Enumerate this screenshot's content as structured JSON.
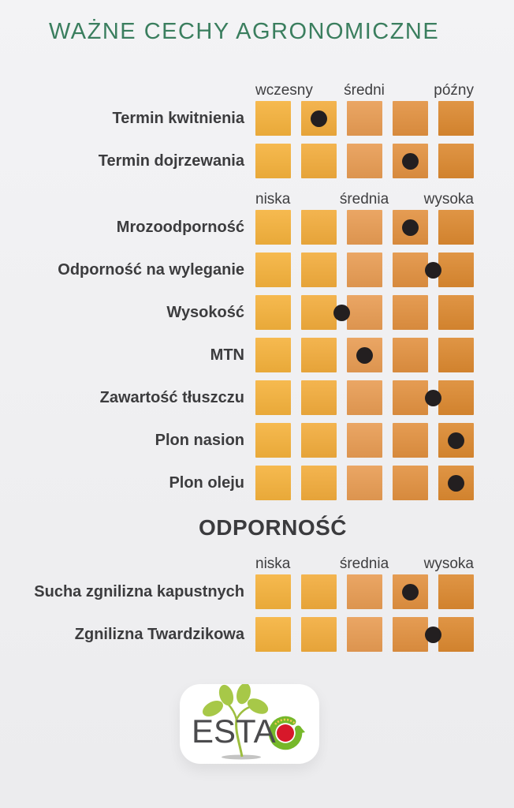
{
  "title": "WAŻNE CECHY AGRONOMICZNE",
  "chart_data": {
    "type": "table",
    "description_scale": "5 cells per row, black dot marks rating from 1 (left) to 5 (right); .5 values sit between cells",
    "scale_colors": [
      "#F5B23C",
      "#F2AC3C",
      "#E89C53",
      "#E29140",
      "#DC8930"
    ],
    "dot_color": "#231F20",
    "sections": [
      {
        "scale_labels": [
          "wczesny",
          "średni",
          "późny"
        ],
        "rows": [
          {
            "label": "Termin kwitnienia",
            "value": 2
          },
          {
            "label": "Termin dojrzewania",
            "value": 4
          }
        ]
      },
      {
        "scale_labels": [
          "niska",
          "średnia",
          "wysoka"
        ],
        "rows": [
          {
            "label": "Mrozoodporność",
            "value": 4
          },
          {
            "label": "Odporność na wyleganie",
            "value": 4.5
          },
          {
            "label": "Wysokość",
            "value": 2.5
          },
          {
            "label": "MTN",
            "value": 3
          },
          {
            "label": "Zawartość tłuszczu",
            "value": 4.5
          },
          {
            "label": "Plon nasion",
            "value": 5
          },
          {
            "label": "Plon oleju",
            "value": 5
          }
        ]
      },
      {
        "title": "ODPORNOŚĆ",
        "scale_labels": [
          "niska",
          "średnia",
          "wysoka"
        ],
        "rows": [
          {
            "label": "Sucha zgnilizna kapustnych",
            "value": 4
          },
          {
            "label": "Zgnilizna Twardzikowa",
            "value": 4.5
          }
        ]
      }
    ]
  },
  "logo": {
    "text": "ESTA"
  },
  "colors": {
    "title_green": "#3A7E5E",
    "label_dark": "#3C3C3E",
    "background": "#F0F0F2",
    "card_white": "#FFFFFF",
    "leaf_green": "#A7C848",
    "seal_green": "#76B82A",
    "seal_red": "#D7182A"
  }
}
